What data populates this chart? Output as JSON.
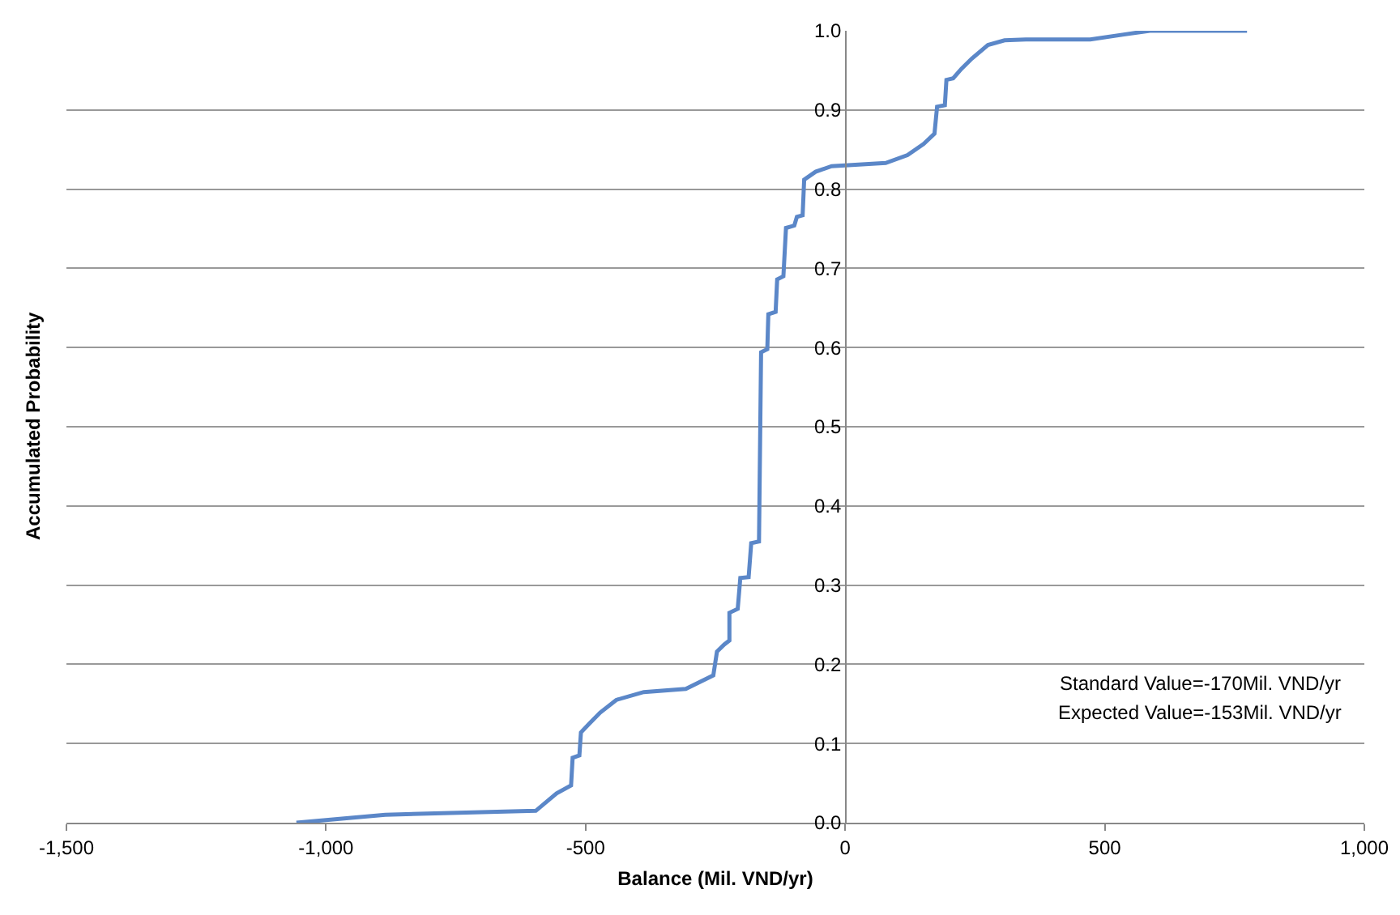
{
  "chart_data": {
    "type": "line",
    "xlabel": "Balance (Mil. VND/yr)",
    "ylabel": "Accumulated Probability",
    "annotations": [
      "Standard Value=-170Mil. VND/yr",
      "Expected Value=-153Mil. VND/yr"
    ],
    "x": [
      -1057,
      -886,
      -596,
      -556,
      -528,
      -525,
      -512,
      -509,
      -493,
      -472,
      -441,
      -388,
      -307,
      -254,
      -247,
      -233,
      -223,
      -223,
      -207,
      -202,
      -186,
      -181,
      -166,
      -162,
      -150,
      -148,
      -134,
      -131,
      -119,
      -114,
      -98,
      -93,
      -82,
      -79,
      -57,
      -26,
      78,
      120,
      151,
      172,
      177,
      192,
      195,
      208,
      224,
      244,
      275,
      307,
      348,
      472,
      534,
      587,
      774
    ],
    "series": [
      {
        "color": "#5b87c8",
        "values": [
          0,
          0.01,
          0.015,
          0.037,
          0.047,
          0.082,
          0.085,
          0.114,
          0.125,
          0.139,
          0.155,
          0.165,
          0.169,
          0.186,
          0.216,
          0.225,
          0.23,
          0.265,
          0.27,
          0.309,
          0.31,
          0.353,
          0.355,
          0.594,
          0.598,
          0.642,
          0.645,
          0.686,
          0.69,
          0.751,
          0.754,
          0.765,
          0.767,
          0.812,
          0.822,
          0.829,
          0.833,
          0.843,
          0.857,
          0.87,
          0.904,
          0.906,
          0.938,
          0.94,
          0.952,
          0.965,
          0.982,
          0.988,
          0.989,
          0.989,
          0.995,
          1.0,
          1.0
        ]
      }
    ],
    "xlim": [
      -1500,
      1000
    ],
    "xticks": [
      {
        "value": -1500,
        "label": "-1,500"
      },
      {
        "value": -1000,
        "label": "-1,000"
      },
      -500,
      0,
      500,
      {
        "value": 1000,
        "label": "1,000"
      }
    ],
    "ylim": [
      0,
      1
    ],
    "yticks": [
      {
        "value": 0,
        "label": "0.0"
      },
      0.1,
      0.2,
      0.3,
      0.4,
      0.5,
      0.6,
      0.7,
      0.8,
      0.9,
      {
        "value": 1,
        "label": "1.0"
      }
    ],
    "grid": "y"
  }
}
